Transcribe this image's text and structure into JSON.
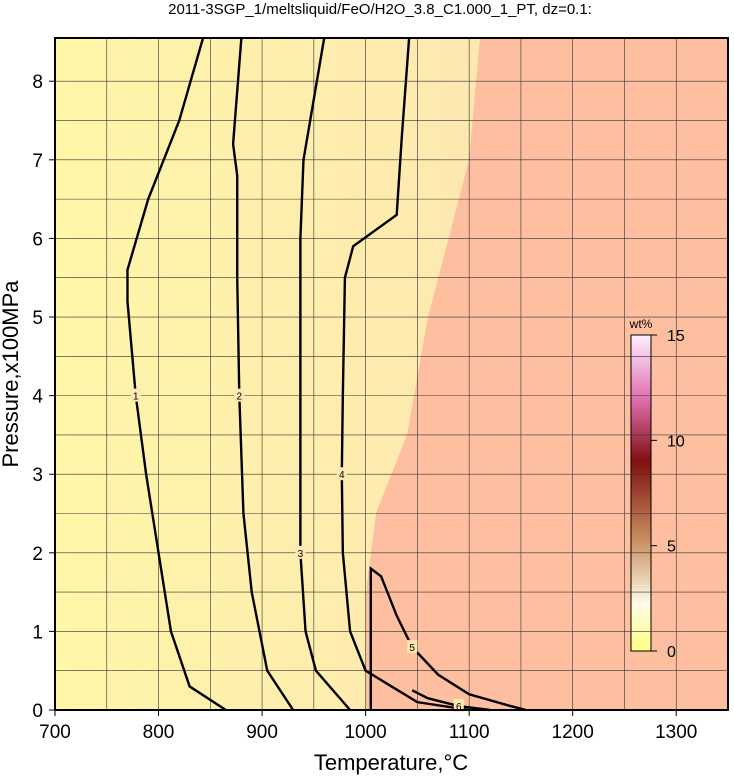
{
  "chart_data": {
    "type": "contour",
    "title": "2011-3SGP_1/meltsliquid/FeO/H2O_3.8_C1.000_1_PT, dz=0.1:",
    "x_label": "Temperature,°C",
    "y_label": "Pressure,x100MPa",
    "xlim": [
      700,
      1350
    ],
    "ylim": [
      0,
      8.55
    ],
    "xticks": [
      700,
      800,
      900,
      1000,
      1100,
      1200,
      1300
    ],
    "yticks": [
      0,
      1,
      2,
      3,
      4,
      5,
      6,
      7,
      8
    ],
    "xgrid": [
      750,
      800,
      850,
      900,
      950,
      1000,
      1050,
      1100,
      1150,
      1200,
      1250,
      1300
    ],
    "ygrid": [
      0.5,
      1,
      1.5,
      2,
      2.5,
      3,
      3.5,
      4,
      4.5,
      5,
      5.5,
      6,
      6.5,
      7,
      7.5,
      8
    ],
    "series": [
      {
        "name": "1",
        "x": [
          843,
          820,
          790,
          770,
          770,
          778,
          788,
          800,
          812,
          830,
          865
        ],
        "values": [
          8.55,
          7.5,
          6.5,
          5.6,
          5.2,
          4.0,
          3.0,
          2.0,
          1.0,
          0.3,
          0
        ]
      },
      {
        "name": "2",
        "x": [
          880,
          872,
          876,
          876,
          878,
          882,
          890,
          905,
          930
        ],
        "values": [
          8.55,
          7.2,
          6.8,
          5.5,
          4.0,
          2.5,
          1.5,
          0.5,
          0
        ]
      },
      {
        "name": "3",
        "x": [
          960,
          940,
          937,
          937,
          937,
          942,
          952,
          985
        ],
        "values": [
          8.55,
          7.0,
          6.0,
          4.0,
          2.0,
          1.0,
          0.5,
          0
        ]
      },
      {
        "name": "4",
        "x": [
          1042,
          1035,
          1030,
          988,
          980,
          978,
          977,
          978,
          985,
          1000,
          1050,
          1100
        ],
        "values": [
          8.55,
          7.3,
          6.3,
          5.9,
          5.5,
          4.0,
          3.0,
          2.0,
          1.0,
          0.5,
          0.1,
          0
        ]
      },
      {
        "name": "5",
        "x": [
          1005,
          1005,
          1015,
          1030,
          1045,
          1070,
          1100,
          1140,
          1155
        ],
        "values": [
          0,
          1.8,
          1.7,
          1.2,
          0.8,
          0.45,
          0.2,
          0.05,
          0
        ]
      },
      {
        "name": "6",
        "x": [
          1045,
          1060,
          1090,
          1120
        ],
        "values": [
          0.25,
          0.15,
          0.05,
          0
        ]
      }
    ],
    "colorbar": {
      "label": "wt%",
      "lim": [
        0,
        15
      ],
      "ticks": [
        0,
        5,
        10,
        15
      ]
    }
  }
}
